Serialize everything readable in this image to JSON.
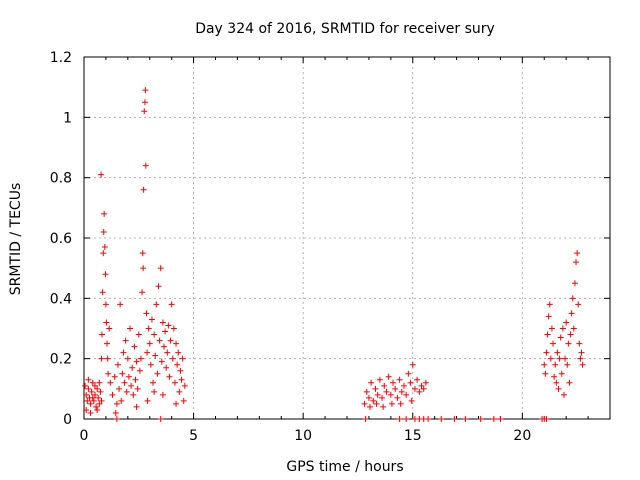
{
  "chart_data": {
    "type": "scatter",
    "title": "Day 324 of 2016, SRMTID for receiver sury",
    "xlabel": "GPS time / hours",
    "ylabel": "SRMTID / TECUs",
    "xlim": [
      0,
      24
    ],
    "ylim": [
      0,
      1.2
    ],
    "x_ticks": [
      0,
      5,
      10,
      15,
      20
    ],
    "x_tick_labels": [
      "0",
      "5",
      "10",
      "15",
      "20"
    ],
    "y_ticks": [
      0,
      0.2,
      0.4,
      0.6,
      0.8,
      1,
      1.2
    ],
    "y_tick_labels": [
      "0",
      "0.2",
      "0.4",
      "0.6",
      "0.8",
      "1",
      "1.2"
    ],
    "grid": true,
    "marker": "plus",
    "color": "#ff0000",
    "points": [
      [
        0.05,
        0.11
      ],
      [
        0.1,
        0.08
      ],
      [
        0.15,
        0.06
      ],
      [
        0.2,
        0.1
      ],
      [
        0.25,
        0.07
      ],
      [
        0.3,
        0.05
      ],
      [
        0.35,
        0.09
      ],
      [
        0.4,
        0.12
      ],
      [
        0.45,
        0.06
      ],
      [
        0.5,
        0.08
      ],
      [
        0.55,
        0.04
      ],
      [
        0.6,
        0.1
      ],
      [
        0.65,
        0.07
      ],
      [
        0.7,
        0.05
      ],
      [
        0.75,
        0.09
      ],
      [
        0.1,
        0.03
      ],
      [
        0.2,
        0.13
      ],
      [
        0.3,
        0.02
      ],
      [
        0.4,
        0.07
      ],
      [
        0.5,
        0.11
      ],
      [
        0.6,
        0.03
      ],
      [
        0.7,
        0.12
      ],
      [
        0.8,
        0.06
      ],
      [
        0.78,
        0.81
      ],
      [
        0.8,
        0.2
      ],
      [
        0.82,
        0.28
      ],
      [
        0.85,
        0.42
      ],
      [
        0.88,
        0.55
      ],
      [
        0.9,
        0.62
      ],
      [
        0.92,
        0.68
      ],
      [
        0.95,
        0.57
      ],
      [
        0.98,
        0.48
      ],
      [
        1.0,
        0.38
      ],
      [
        1.02,
        0.32
      ],
      [
        1.05,
        0.25
      ],
      [
        1.08,
        0.2
      ],
      [
        1.1,
        0.15
      ],
      [
        1.15,
        0.3
      ],
      [
        1.2,
        0.12
      ],
      [
        1.3,
        0.08
      ],
      [
        1.4,
        0.14
      ],
      [
        1.5,
        0.05
      ],
      [
        1.55,
        0.18
      ],
      [
        1.6,
        0.1
      ],
      [
        1.65,
        0.38
      ],
      [
        1.7,
        0.06
      ],
      [
        1.75,
        0.15
      ],
      [
        1.8,
        0.22
      ],
      [
        1.85,
        0.12
      ],
      [
        1.9,
        0.26
      ],
      [
        1.95,
        0.09
      ],
      [
        2.0,
        0.2
      ],
      [
        2.05,
        0.14
      ],
      [
        2.1,
        0.3
      ],
      [
        2.15,
        0.11
      ],
      [
        2.2,
        0.17
      ],
      [
        2.25,
        0.08
      ],
      [
        2.3,
        0.24
      ],
      [
        2.35,
        0.13
      ],
      [
        2.4,
        0.19
      ],
      [
        2.45,
        0.1
      ],
      [
        2.5,
        0.28
      ],
      [
        2.55,
        0.16
      ],
      [
        2.6,
        0.2
      ],
      [
        2.65,
        0.42
      ],
      [
        2.68,
        0.55
      ],
      [
        2.7,
        0.5
      ],
      [
        2.72,
        0.76
      ],
      [
        2.75,
        1.02
      ],
      [
        2.78,
        1.05
      ],
      [
        2.8,
        1.09
      ],
      [
        2.82,
        0.84
      ],
      [
        2.85,
        0.35
      ],
      [
        2.88,
        0.22
      ],
      [
        2.9,
        0.06
      ],
      [
        2.95,
        0.3
      ],
      [
        3.0,
        0.25
      ],
      [
        3.05,
        0.18
      ],
      [
        3.1,
        0.33
      ],
      [
        3.15,
        0.12
      ],
      [
        3.2,
        0.28
      ],
      [
        3.25,
        0.21
      ],
      [
        3.3,
        0.38
      ],
      [
        3.35,
        0.15
      ],
      [
        3.4,
        0.44
      ],
      [
        3.45,
        0.26
      ],
      [
        3.5,
        0.5
      ],
      [
        3.55,
        0.19
      ],
      [
        3.6,
        0.32
      ],
      [
        3.65,
        0.24
      ],
      [
        3.7,
        0.29
      ],
      [
        3.75,
        0.17
      ],
      [
        3.8,
        0.22
      ],
      [
        3.85,
        0.31
      ],
      [
        3.9,
        0.14
      ],
      [
        3.95,
        0.26
      ],
      [
        4.0,
        0.38
      ],
      [
        4.05,
        0.2
      ],
      [
        4.1,
        0.3
      ],
      [
        4.15,
        0.12
      ],
      [
        4.2,
        0.25
      ],
      [
        4.25,
        0.18
      ],
      [
        4.3,
        0.22
      ],
      [
        4.35,
        0.09
      ],
      [
        4.4,
        0.16
      ],
      [
        4.45,
        0.13
      ],
      [
        4.5,
        0.2
      ],
      [
        4.55,
        0.06
      ],
      [
        4.6,
        0.11
      ],
      [
        3.2,
        0.09
      ],
      [
        3.6,
        0.08
      ],
      [
        4.2,
        0.05
      ],
      [
        2.4,
        0.04
      ],
      [
        1.45,
        0.02
      ],
      [
        12.8,
        0.05
      ],
      [
        12.9,
        0.09
      ],
      [
        13.0,
        0.07
      ],
      [
        13.1,
        0.12
      ],
      [
        13.2,
        0.06
      ],
      [
        13.3,
        0.1
      ],
      [
        13.4,
        0.08
      ],
      [
        13.5,
        0.13
      ],
      [
        13.6,
        0.07
      ],
      [
        13.7,
        0.11
      ],
      [
        13.8,
        0.09
      ],
      [
        13.9,
        0.14
      ],
      [
        14.0,
        0.08
      ],
      [
        14.1,
        0.12
      ],
      [
        14.2,
        0.1
      ],
      [
        14.3,
        0.07
      ],
      [
        14.4,
        0.13
      ],
      [
        14.5,
        0.09
      ],
      [
        14.6,
        0.11
      ],
      [
        14.7,
        0.08
      ],
      [
        14.8,
        0.15
      ],
      [
        14.9,
        0.12
      ],
      [
        15.0,
        0.18
      ],
      [
        15.1,
        0.1
      ],
      [
        15.2,
        0.13
      ],
      [
        15.3,
        0.09
      ],
      [
        15.4,
        0.11
      ],
      [
        15.5,
        0.1
      ],
      [
        15.6,
        0.12
      ],
      [
        13.05,
        0.04
      ],
      [
        13.35,
        0.05
      ],
      [
        13.65,
        0.04
      ],
      [
        14.05,
        0.05
      ],
      [
        14.45,
        0.05
      ],
      [
        14.95,
        0.06
      ],
      [
        21.0,
        0.18
      ],
      [
        21.05,
        0.15
      ],
      [
        21.1,
        0.22
      ],
      [
        21.15,
        0.28
      ],
      [
        21.2,
        0.34
      ],
      [
        21.25,
        0.38
      ],
      [
        21.3,
        0.2
      ],
      [
        21.35,
        0.3
      ],
      [
        21.4,
        0.25
      ],
      [
        21.45,
        0.14
      ],
      [
        21.5,
        0.18
      ],
      [
        21.55,
        0.12
      ],
      [
        21.6,
        0.22
      ],
      [
        21.65,
        0.1
      ],
      [
        21.7,
        0.2
      ],
      [
        21.75,
        0.27
      ],
      [
        21.8,
        0.15
      ],
      [
        21.85,
        0.3
      ],
      [
        21.9,
        0.08
      ],
      [
        21.95,
        0.2
      ],
      [
        22.0,
        0.32
      ],
      [
        22.05,
        0.18
      ],
      [
        22.1,
        0.25
      ],
      [
        22.15,
        0.12
      ],
      [
        22.2,
        0.28
      ],
      [
        22.25,
        0.35
      ],
      [
        22.3,
        0.4
      ],
      [
        22.35,
        0.3
      ],
      [
        22.4,
        0.45
      ],
      [
        22.45,
        0.52
      ],
      [
        22.5,
        0.55
      ],
      [
        22.55,
        0.38
      ],
      [
        22.6,
        0.25
      ],
      [
        22.65,
        0.2
      ],
      [
        22.7,
        0.22
      ],
      [
        22.75,
        0.18
      ],
      [
        1.5,
        0.0
      ],
      [
        3.5,
        0.0
      ],
      [
        12.85,
        0.0
      ],
      [
        14.4,
        0.0
      ],
      [
        14.7,
        0.0
      ],
      [
        15.1,
        0.0
      ],
      [
        15.3,
        0.0
      ],
      [
        15.5,
        0.0
      ],
      [
        15.7,
        0.0
      ],
      [
        16.3,
        0.0
      ],
      [
        16.9,
        0.0
      ],
      [
        17.4,
        0.0
      ],
      [
        18.1,
        0.0
      ],
      [
        18.7,
        0.0
      ],
      [
        19.0,
        0.0
      ],
      [
        20.9,
        0.0
      ],
      [
        21.0,
        0.0
      ],
      [
        21.1,
        0.0
      ]
    ]
  }
}
